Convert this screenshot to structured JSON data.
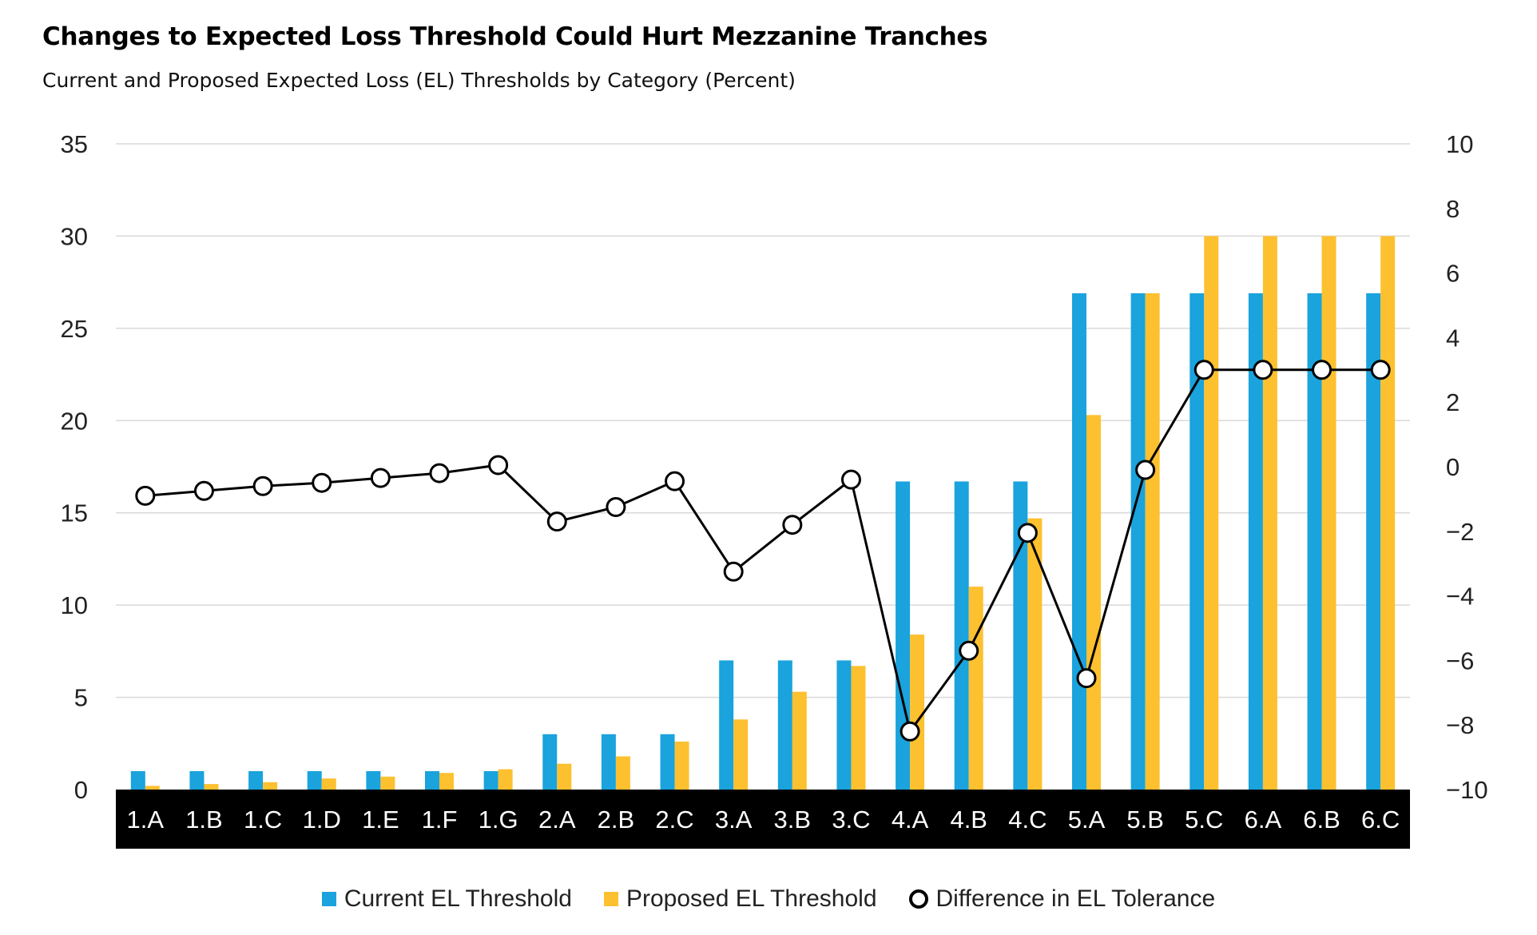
{
  "title": "Changes to Expected Loss Threshold Could Hurt Mezzanine Tranches",
  "subtitle": "Current and Proposed Expected Loss (EL) Thresholds by Category (Percent)",
  "colors": {
    "current": "#1aa3dd",
    "proposed": "#fdc02f",
    "line": "#000000",
    "axis_band": "#000000",
    "grid": "#d9d9d9"
  },
  "legend": [
    {
      "label": "Current EL Threshold",
      "swatch": "square",
      "color": "#1aa3dd"
    },
    {
      "label": "Proposed EL Threshold",
      "swatch": "square",
      "color": "#fdc02f"
    },
    {
      "label": "Difference in EL Tolerance",
      "swatch": "circle",
      "color": "#000000"
    }
  ],
  "chart_data": {
    "type": "bar",
    "categories": [
      "1.A",
      "1.B",
      "1.C",
      "1.D",
      "1.E",
      "1.F",
      "1.G",
      "2.A",
      "2.B",
      "2.C",
      "3.A",
      "3.B",
      "3.C",
      "4.A",
      "4.B",
      "4.C",
      "5.A",
      "5.B",
      "5.C",
      "6.A",
      "6.B",
      "6.C"
    ],
    "series": [
      {
        "name": "Current EL Threshold",
        "axis": "left",
        "type": "bar",
        "values": [
          1,
          1,
          1,
          1,
          1,
          1,
          1,
          3,
          3,
          3,
          7,
          7,
          7,
          16.7,
          16.7,
          16.7,
          26.9,
          26.9,
          26.9,
          26.9,
          26.9,
          26.9
        ]
      },
      {
        "name": "Proposed EL Threshold",
        "axis": "left",
        "type": "bar",
        "values": [
          0.2,
          0.3,
          0.4,
          0.6,
          0.7,
          0.9,
          1.1,
          1.4,
          1.8,
          2.6,
          3.8,
          5.3,
          6.7,
          8.4,
          11.0,
          14.7,
          20.3,
          26.9,
          30,
          30,
          30,
          30
        ]
      },
      {
        "name": "Difference in EL Tolerance",
        "axis": "right",
        "type": "line",
        "values": [
          -0.9,
          -0.75,
          -0.6,
          -0.5,
          -0.35,
          -0.2,
          0.05,
          -1.7,
          -1.25,
          -0.45,
          -3.25,
          -1.8,
          -0.4,
          -8.2,
          -5.7,
          -2.05,
          -6.55,
          -0.1,
          3.0,
          3.0,
          3.0,
          3.0
        ]
      }
    ],
    "y_left": {
      "min": 0,
      "max": 35,
      "ticks": [
        "0",
        "5",
        "10",
        "15",
        "20",
        "25",
        "30",
        "35"
      ]
    },
    "y_right": {
      "min": -10,
      "max": 10,
      "ticks": [
        "−10",
        "−8",
        "−6",
        "−4",
        "−2",
        "0",
        "2",
        "4",
        "6",
        "8",
        "10"
      ]
    },
    "grid": true,
    "legend_position": "bottom"
  }
}
